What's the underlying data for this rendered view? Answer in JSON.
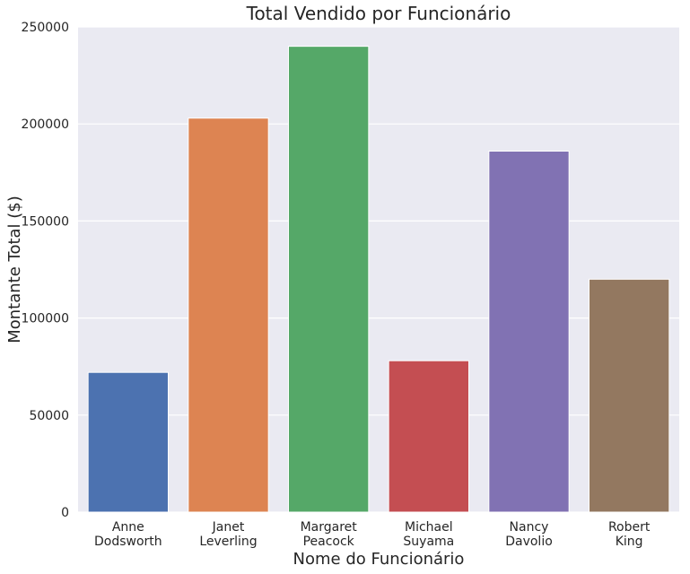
{
  "chart_data": {
    "type": "bar",
    "title": "Total Vendido por Funcionário",
    "xlabel": "Nome do Funcionário",
    "ylabel": "Montante Total ($)",
    "categories": [
      [
        "Anne",
        "Dodsworth"
      ],
      [
        "Janet",
        "Leverling"
      ],
      [
        "Margaret",
        "Peacock"
      ],
      [
        "Michael",
        "Suyama"
      ],
      [
        "Nancy",
        "Davolio"
      ],
      [
        "Robert",
        "King"
      ]
    ],
    "values": [
      72000,
      203000,
      240000,
      78000,
      186000,
      120000
    ],
    "colors": [
      "#4c72b0",
      "#dd8452",
      "#55a868",
      "#c44e52",
      "#8172b3",
      "#937860"
    ],
    "ylim": [
      0,
      250000
    ],
    "yticks": [
      "0",
      "50000",
      "100000",
      "150000",
      "200000",
      "250000"
    ],
    "grid": true,
    "background": "#eaeaf2"
  }
}
